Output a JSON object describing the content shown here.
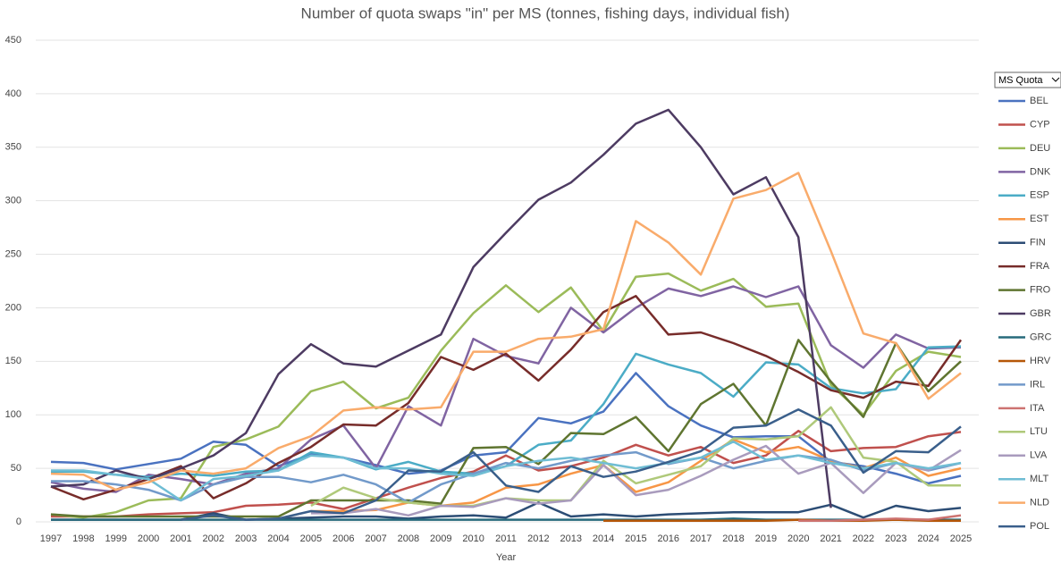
{
  "chart_data": {
    "type": "line",
    "title": "Number of quota swaps \"in\" per MS (tonnes, fishing days, individual fish)",
    "x_label": "Year",
    "legend_title": "MS Quota",
    "categories": [
      "1997",
      "1998",
      "1999",
      "2000",
      "2001",
      "2002",
      "2003",
      "2004",
      "2005",
      "2006",
      "2007",
      "2008",
      "2009",
      "2010",
      "2011",
      "2012",
      "2013",
      "2014",
      "2015",
      "2016",
      "2017",
      "2018",
      "2019",
      "2020",
      "2021",
      "2022",
      "2023",
      "2024",
      "2025"
    ],
    "ylim": [
      0,
      450
    ],
    "yticks": [
      0,
      50,
      100,
      150,
      200,
      250,
      300,
      350,
      400,
      450
    ],
    "grid": true,
    "series": [
      {
        "name": "BEL",
        "color": "#4a72c0",
        "values": [
          56,
          55,
          49,
          54,
          59,
          75,
          72,
          52,
          63,
          60,
          53,
          45,
          48,
          62,
          65,
          97,
          92,
          103,
          139,
          108,
          90,
          79,
          80,
          80,
          56,
          52,
          45,
          36,
          43
        ]
      },
      {
        "name": "CYP",
        "color": "#c0504d",
        "values": [
          5,
          5,
          5,
          7,
          8,
          9,
          15,
          16,
          18,
          12,
          22,
          32,
          41,
          47,
          62,
          48,
          52,
          60,
          72,
          62,
          70,
          55,
          62,
          85,
          66,
          69,
          70,
          80,
          84
        ]
      },
      {
        "name": "DEU",
        "color": "#9bbb59",
        "values": [
          7,
          4,
          9,
          20,
          22,
          70,
          77,
          89,
          122,
          131,
          106,
          116,
          160,
          195,
          221,
          196,
          219,
          178,
          229,
          232,
          216,
          227,
          201,
          204,
          128,
          100,
          141,
          159,
          154
        ]
      },
      {
        "name": "DNK",
        "color": "#8064a2",
        "values": [
          37,
          31,
          28,
          44,
          40,
          35,
          45,
          50,
          77,
          90,
          50,
          108,
          90,
          171,
          155,
          148,
          200,
          177,
          200,
          218,
          211,
          220,
          210,
          220,
          165,
          144,
          175,
          162,
          163
        ]
      },
      {
        "name": "ESP",
        "color": "#4bacc6",
        "values": [
          47,
          47,
          44,
          42,
          45,
          43,
          47,
          48,
          65,
          60,
          49,
          56,
          47,
          45,
          52,
          72,
          76,
          110,
          157,
          147,
          139,
          117,
          149,
          147,
          125,
          120,
          124,
          163,
          164
        ]
      },
      {
        "name": "EST",
        "color": "#f79646",
        "values": [
          null,
          null,
          null,
          null,
          null,
          null,
          null,
          null,
          10,
          10,
          11,
          18,
          15,
          18,
          32,
          35,
          45,
          53,
          28,
          37,
          57,
          77,
          65,
          70,
          57,
          50,
          60,
          43,
          50
        ]
      },
      {
        "name": "FIN",
        "color": "#2c4d75",
        "values": [
          2,
          2,
          2,
          2,
          2,
          8,
          2,
          3,
          4,
          5,
          5,
          3,
          5,
          6,
          4,
          18,
          5,
          7,
          5,
          7,
          8,
          9,
          9,
          9,
          16,
          4,
          15,
          10,
          13
        ]
      },
      {
        "name": "FRA",
        "color": "#772c2a",
        "values": [
          33,
          21,
          30,
          40,
          52,
          22,
          36,
          55,
          70,
          91,
          90,
          111,
          154,
          142,
          157,
          132,
          161,
          196,
          211,
          175,
          177,
          167,
          155,
          140,
          123,
          116,
          131,
          127,
          170
        ]
      },
      {
        "name": "FRO",
        "color": "#5f7530",
        "values": [
          7,
          5,
          5,
          5,
          5,
          5,
          5,
          5,
          20,
          20,
          20,
          20,
          17,
          69,
          70,
          54,
          83,
          82,
          98,
          66,
          110,
          129,
          90,
          170,
          131,
          98,
          167,
          122,
          150
        ]
      },
      {
        "name": "GBR",
        "color": "#4d3b62",
        "values": [
          33,
          35,
          48,
          40,
          50,
          62,
          83,
          138,
          166,
          148,
          145,
          160,
          175,
          238,
          270,
          301,
          317,
          343,
          372,
          385,
          350,
          306,
          322,
          266,
          13,
          null,
          null,
          null,
          null
        ]
      },
      {
        "name": "GRC",
        "color": "#276a7c",
        "values": [
          2,
          2,
          2,
          2,
          2,
          2,
          2,
          2,
          2,
          2,
          2,
          2,
          2,
          2,
          2,
          2,
          2,
          2,
          2,
          2,
          2,
          3,
          2,
          2,
          2,
          2,
          2,
          2,
          2
        ]
      },
      {
        "name": "HRV",
        "color": "#b65708",
        "values": [
          null,
          null,
          null,
          null,
          null,
          null,
          null,
          null,
          null,
          null,
          null,
          null,
          null,
          null,
          null,
          null,
          null,
          1,
          1,
          1,
          1,
          1,
          1,
          2,
          1,
          1,
          2,
          1,
          1
        ]
      },
      {
        "name": "IRL",
        "color": "#729aca",
        "values": [
          38,
          38,
          35,
          30,
          20,
          35,
          42,
          42,
          37,
          44,
          35,
          18,
          35,
          45,
          55,
          50,
          57,
          62,
          65,
          54,
          60,
          50,
          57,
          62,
          58,
          48,
          55,
          48,
          55
        ]
      },
      {
        "name": "ITA",
        "color": "#cd7371",
        "values": [
          null,
          null,
          null,
          null,
          null,
          null,
          null,
          null,
          null,
          null,
          null,
          null,
          null,
          null,
          null,
          null,
          null,
          null,
          null,
          null,
          null,
          null,
          null,
          1,
          1,
          2,
          3,
          2,
          6
        ]
      },
      {
        "name": "LTU",
        "color": "#afc97a",
        "values": [
          null,
          null,
          null,
          null,
          null,
          null,
          null,
          null,
          15,
          32,
          22,
          18,
          15,
          15,
          22,
          20,
          20,
          57,
          36,
          44,
          52,
          78,
          77,
          80,
          107,
          60,
          56,
          34,
          34
        ]
      },
      {
        "name": "LVA",
        "color": "#a99bbd",
        "values": [
          null,
          null,
          null,
          null,
          null,
          null,
          null,
          null,
          8,
          8,
          12,
          6,
          15,
          14,
          22,
          17,
          20,
          53,
          25,
          30,
          43,
          58,
          71,
          45,
          55,
          27,
          55,
          48,
          67
        ]
      },
      {
        "name": "MLT",
        "color": "#6fbdd4",
        "values": [
          48,
          48,
          44,
          40,
          20,
          40,
          43,
          48,
          62,
          60,
          50,
          50,
          45,
          43,
          52,
          57,
          60,
          55,
          50,
          55,
          60,
          75,
          58,
          62,
          55,
          50,
          55,
          50,
          55
        ]
      },
      {
        "name": "NLD",
        "color": "#f9ab6b",
        "values": [
          45,
          44,
          30,
          37,
          48,
          45,
          50,
          69,
          80,
          104,
          107,
          105,
          107,
          159,
          159,
          171,
          173,
          180,
          281,
          261,
          231,
          302,
          310,
          326,
          253,
          176,
          167,
          115,
          139
        ]
      },
      {
        "name": "POL",
        "color": "#3a5f8b",
        "values": [
          null,
          null,
          null,
          null,
          2,
          6,
          2,
          3,
          10,
          8,
          20,
          48,
          47,
          65,
          34,
          28,
          52,
          42,
          47,
          56,
          66,
          88,
          90,
          105,
          90,
          46,
          66,
          65,
          89
        ]
      }
    ]
  }
}
